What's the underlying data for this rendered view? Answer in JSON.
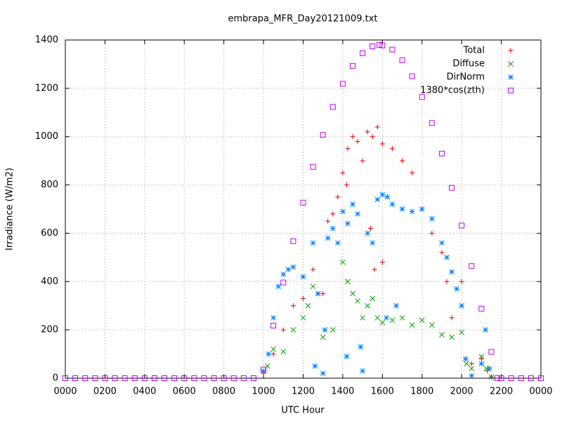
{
  "chart_data": {
    "type": "scatter",
    "title": "embrapa_MFR_Day20121009.txt",
    "x_label": "UTC Hour",
    "y_label": "Irradiance (W/m2)",
    "xlim": [
      0,
      24
    ],
    "ylim": [
      0,
      1400
    ],
    "xticks": [
      {
        "value": 0,
        "label": "0000"
      },
      {
        "value": 2,
        "label": "0200"
      },
      {
        "value": 4,
        "label": "0400"
      },
      {
        "value": 6,
        "label": "0600"
      },
      {
        "value": 8,
        "label": "0800"
      },
      {
        "value": 10,
        "label": "1000"
      },
      {
        "value": 12,
        "label": "1200"
      },
      {
        "value": 14,
        "label": "1400"
      },
      {
        "value": 16,
        "label": "1600"
      },
      {
        "value": 18,
        "label": "1800"
      },
      {
        "value": 20,
        "label": "2000"
      },
      {
        "value": 22,
        "label": "2200"
      },
      {
        "value": 24,
        "label": "0000"
      }
    ],
    "yticks": [
      0,
      200,
      400,
      600,
      800,
      1000,
      1200,
      1400
    ],
    "grid": true,
    "legend": "top-right",
    "series": [
      {
        "name": "Total",
        "color": "#e00000",
        "marker": "plus",
        "x": [
          10,
          10.5,
          11,
          11.5,
          12,
          12.5,
          13,
          13.25,
          13.5,
          13.75,
          14,
          14.25,
          14.5,
          14.75,
          15,
          15.25,
          15.5,
          15.75,
          16,
          16.5,
          17,
          17.5,
          18,
          18.5,
          19,
          19.25,
          19.5,
          20,
          20.2,
          20.5,
          21,
          21.3,
          21.5,
          14.2,
          15.4,
          16,
          15.6
        ],
        "values": [
          20,
          100,
          200,
          300,
          330,
          450,
          350,
          650,
          680,
          750,
          850,
          950,
          1000,
          980,
          900,
          1020,
          1000,
          1040,
          970,
          950,
          900,
          850,
          700,
          600,
          520,
          400,
          250,
          400,
          80,
          60,
          80,
          30,
          5,
          800,
          620,
          480,
          450
        ]
      },
      {
        "name": "Diffuse",
        "color": "#00a000",
        "marker": "cross",
        "x": [
          10.2,
          10.5,
          11,
          11.5,
          12,
          12.25,
          12.5,
          12.75,
          13,
          13.5,
          14,
          14.25,
          14.5,
          14.75,
          15,
          15.25,
          15.5,
          15.75,
          16,
          16.5,
          17,
          17.5,
          18,
          18.5,
          19,
          19.5,
          20,
          20.25,
          20.5,
          21,
          21.25,
          21.5
        ],
        "values": [
          50,
          120,
          110,
          200,
          250,
          300,
          380,
          350,
          170,
          200,
          480,
          400,
          350,
          320,
          250,
          300,
          330,
          250,
          230,
          240,
          250,
          220,
          240,
          220,
          180,
          170,
          190,
          60,
          40,
          90,
          40,
          5
        ]
      },
      {
        "name": "DirNorm",
        "color": "#0080ff",
        "marker": "star",
        "x": [
          10,
          10.25,
          10.5,
          10.75,
          11,
          11.25,
          11.5,
          12,
          12.5,
          12.75,
          13,
          13.25,
          13.5,
          13.75,
          14,
          14.25,
          14.5,
          14.75,
          15,
          15.25,
          15.5,
          15.75,
          16,
          16.25,
          16.5,
          17,
          17.5,
          18,
          18.5,
          19,
          19.25,
          19.5,
          19.75,
          20,
          20.2,
          20.5,
          21,
          21.2,
          21.4,
          12.6,
          13.1,
          14.2,
          14.9,
          16.2,
          16.7
        ],
        "values": [
          30,
          100,
          250,
          380,
          430,
          450,
          460,
          420,
          560,
          350,
          20,
          580,
          620,
          560,
          690,
          640,
          720,
          680,
          30,
          600,
          560,
          740,
          760,
          750,
          720,
          700,
          690,
          700,
          660,
          560,
          500,
          440,
          370,
          300,
          80,
          10,
          60,
          200,
          40,
          50,
          200,
          90,
          130,
          250,
          300
        ]
      },
      {
        "name": "1380*cos(zth)",
        "color": "#c000ff",
        "marker": "square",
        "x": [
          0,
          0.5,
          1,
          1.5,
          2,
          2.5,
          3,
          3.5,
          4,
          4.5,
          5,
          5.5,
          6,
          6.5,
          7,
          7.5,
          8,
          8.5,
          9,
          9.5,
          10,
          10.5,
          11,
          11.5,
          12,
          12.5,
          13,
          13.5,
          14,
          14.5,
          15,
          15.5,
          15.85,
          16,
          16.5,
          17,
          17.5,
          18,
          18.5,
          19,
          19.5,
          20,
          20.5,
          21,
          21.5,
          21.8,
          22,
          22.5,
          23,
          23.5,
          24
        ],
        "values": [
          0,
          0,
          0,
          0,
          0,
          0,
          0,
          0,
          0,
          0,
          0,
          0,
          0,
          0,
          0,
          0,
          0,
          0,
          0,
          0,
          36,
          218,
          396,
          567,
          727,
          875,
          1007,
          1123,
          1219,
          1293,
          1345,
          1374,
          1380,
          1378,
          1360,
          1316,
          1250,
          1164,
          1056,
          930,
          788,
          632,
          464,
          288,
          109,
          0,
          0,
          0,
          0,
          0,
          0
        ]
      }
    ]
  }
}
